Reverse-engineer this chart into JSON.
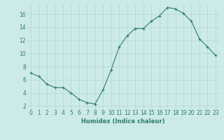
{
  "x": [
    0,
    1,
    2,
    3,
    4,
    5,
    6,
    7,
    8,
    9,
    10,
    11,
    12,
    13,
    14,
    15,
    16,
    17,
    18,
    19,
    20,
    21,
    22,
    23
  ],
  "y": [
    7.0,
    6.5,
    5.3,
    4.8,
    4.8,
    4.0,
    3.0,
    2.5,
    2.3,
    4.5,
    7.5,
    11.0,
    12.7,
    13.8,
    13.8,
    14.9,
    15.7,
    17.0,
    16.8,
    16.1,
    14.9,
    12.2,
    11.0,
    9.7
  ],
  "line_color": "#2e7d6e",
  "marker": "+",
  "marker_size": 3.5,
  "marker_linewidth": 0.8,
  "bg_color": "#cceae7",
  "grid_color": "#b0d8d4",
  "xlabel": "Humidex (Indice chaleur)",
  "xlim": [
    -0.5,
    23.5
  ],
  "ylim": [
    1.5,
    17.5
  ],
  "yticks": [
    2,
    4,
    6,
    8,
    10,
    12,
    14,
    16
  ],
  "xticks": [
    0,
    1,
    2,
    3,
    4,
    5,
    6,
    7,
    8,
    9,
    10,
    11,
    12,
    13,
    14,
    15,
    16,
    17,
    18,
    19,
    20,
    21,
    22,
    23
  ],
  "xtick_labels": [
    "0",
    "1",
    "2",
    "3",
    "4",
    "5",
    "6",
    "7",
    "8",
    "9",
    "10",
    "11",
    "12",
    "13",
    "14",
    "15",
    "16",
    "17",
    "18",
    "19",
    "20",
    "21",
    "22",
    "23"
  ],
  "tick_color": "#2e7d6e",
  "label_fontsize": 6.0,
  "tick_fontsize": 5.5,
  "linewidth": 0.8
}
